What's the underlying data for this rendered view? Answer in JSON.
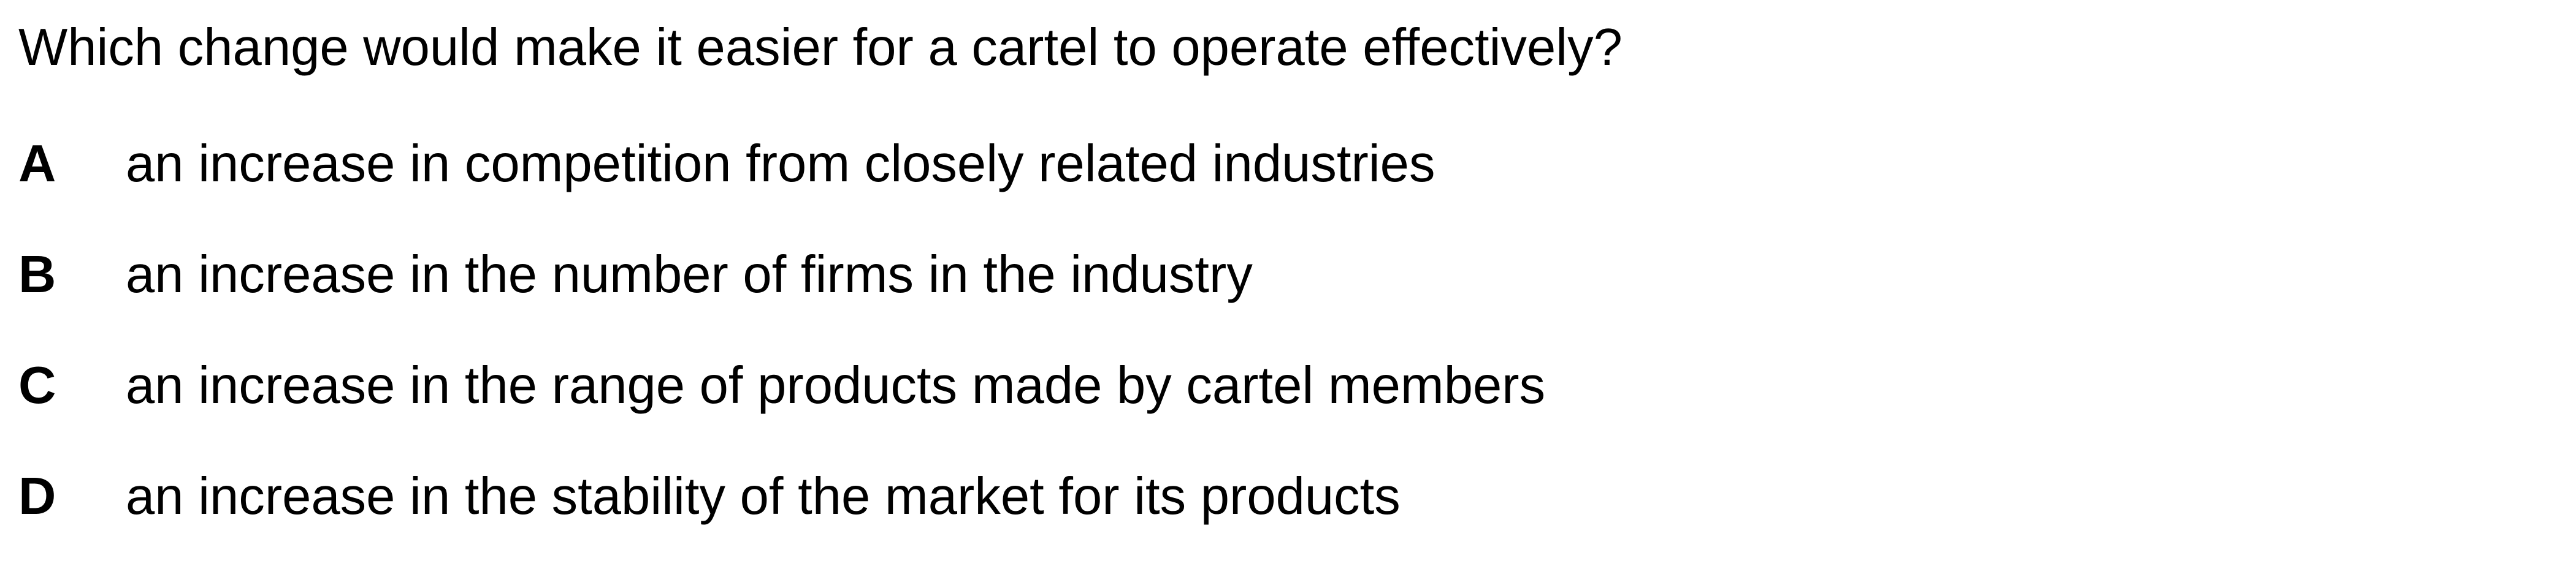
{
  "question": {
    "text": "Which change would make it easier for a cartel to operate effectively?"
  },
  "options": [
    {
      "letter": "A",
      "text": "an increase in competition from closely related industries"
    },
    {
      "letter": "B",
      "text": "an increase in the number of firms in the industry"
    },
    {
      "letter": "C",
      "text": "an increase in the range of products made by cartel members"
    },
    {
      "letter": "D",
      "text": "an increase in the stability of the market for its products"
    }
  ]
}
